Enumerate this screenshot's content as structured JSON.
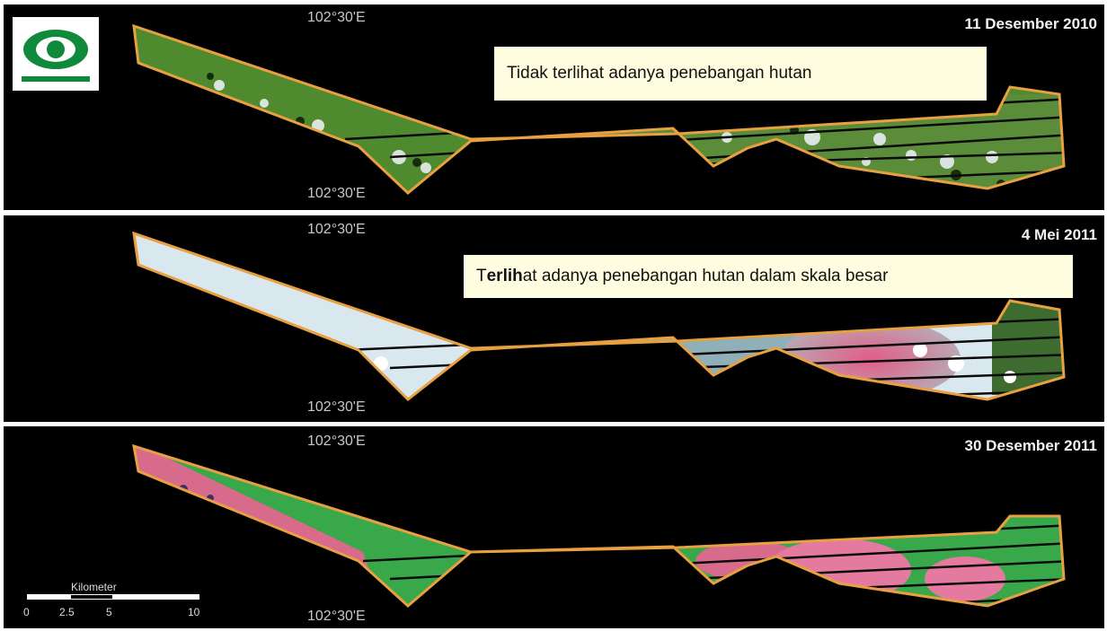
{
  "coordinate_label": "102°30'E",
  "panels": [
    {
      "date": "11 Desember 2010",
      "callout": "Tidak terlihat adanya penebangan hutan"
    },
    {
      "date": "4 Mei 2011",
      "callout": {
        "pre": "T",
        "bold": "erlih",
        "post": "at adanya penebangan hutan dalam skala besar"
      }
    },
    {
      "date": "30 Desember 2011"
    }
  ],
  "scale_bar": {
    "title": "Kilometer",
    "ticks": [
      "0",
      "2.5",
      "5",
      "10"
    ]
  },
  "logo": {
    "label": "eye logo"
  },
  "colors": {
    "boundary": "#e8a040",
    "callout_bg": "#fffde0",
    "forest": "#4f8a2e",
    "logged": "#d86a8c",
    "cloud": "#d9e8ee"
  }
}
